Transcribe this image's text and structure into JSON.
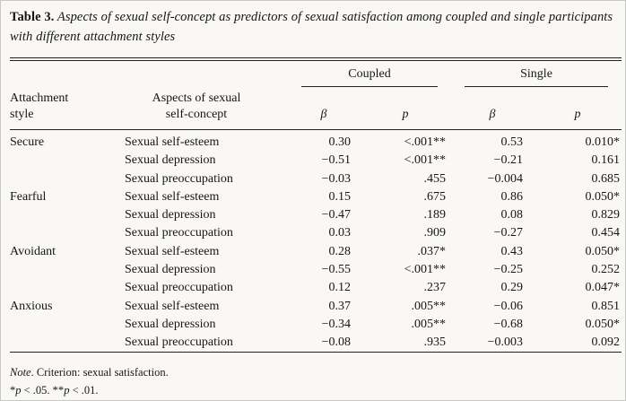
{
  "caption": {
    "label": "Table 3.",
    "text": " Aspects of sexual self-concept as predictors of sexual satisfaction among coupled and single participants with different attachment styles"
  },
  "table": {
    "groups": [
      "Coupled",
      "Single"
    ],
    "headers": {
      "attachment_line1": "Attachment",
      "attachment_line2": "style",
      "aspect_line1": "Aspects of sexual",
      "aspect_line2": "self-concept",
      "beta": "β",
      "p": "p"
    },
    "rows": [
      {
        "attachment": "Secure",
        "aspect": "Sexual self-esteem",
        "coupled_beta": "0.30",
        "coupled_p": "<.001**",
        "single_beta": "0.53",
        "single_p": "0.010*"
      },
      {
        "attachment": "",
        "aspect": "Sexual depression",
        "coupled_beta": "−0.51",
        "coupled_p": "<.001**",
        "single_beta": "−0.21",
        "single_p": "0.161"
      },
      {
        "attachment": "",
        "aspect": "Sexual preoccupation",
        "coupled_beta": "−0.03",
        "coupled_p": ".455",
        "single_beta": "−0.004",
        "single_p": "0.685"
      },
      {
        "attachment": "Fearful",
        "aspect": "Sexual self-esteem",
        "coupled_beta": "0.15",
        "coupled_p": ".675",
        "single_beta": "0.86",
        "single_p": "0.050*"
      },
      {
        "attachment": "",
        "aspect": "Sexual depression",
        "coupled_beta": "−0.47",
        "coupled_p": ".189",
        "single_beta": "0.08",
        "single_p": "0.829"
      },
      {
        "attachment": "",
        "aspect": "Sexual preoccupation",
        "coupled_beta": "0.03",
        "coupled_p": ".909",
        "single_beta": "−0.27",
        "single_p": "0.454"
      },
      {
        "attachment": "Avoidant",
        "aspect": "Sexual self-esteem",
        "coupled_beta": "0.28",
        "coupled_p": ".037*",
        "single_beta": "0.43",
        "single_p": "0.050*"
      },
      {
        "attachment": "",
        "aspect": "Sexual depression",
        "coupled_beta": "−0.55",
        "coupled_p": "<.001**",
        "single_beta": "−0.25",
        "single_p": "0.252"
      },
      {
        "attachment": "",
        "aspect": "Sexual preoccupation",
        "coupled_beta": "0.12",
        "coupled_p": ".237",
        "single_beta": "0.29",
        "single_p": "0.047*"
      },
      {
        "attachment": "Anxious",
        "aspect": "Sexual self-esteem",
        "coupled_beta": "0.37",
        "coupled_p": ".005**",
        "single_beta": "−0.06",
        "single_p": "0.851"
      },
      {
        "attachment": "",
        "aspect": "Sexual depression",
        "coupled_beta": "−0.34",
        "coupled_p": ".005**",
        "single_beta": "−0.68",
        "single_p": "0.050*"
      },
      {
        "attachment": "",
        "aspect": "Sexual preoccupation",
        "coupled_beta": "−0.08",
        "coupled_p": ".935",
        "single_beta": "−0.003",
        "single_p": "0.092"
      }
    ]
  },
  "notes": {
    "note_label": "Note",
    "note_text": ". Criterion: sexual satisfaction.",
    "sig_star1": "*",
    "sig_p1": "p",
    "sig_mid": " < .05. **",
    "sig_p2": "p",
    "sig_end": " < .01."
  }
}
